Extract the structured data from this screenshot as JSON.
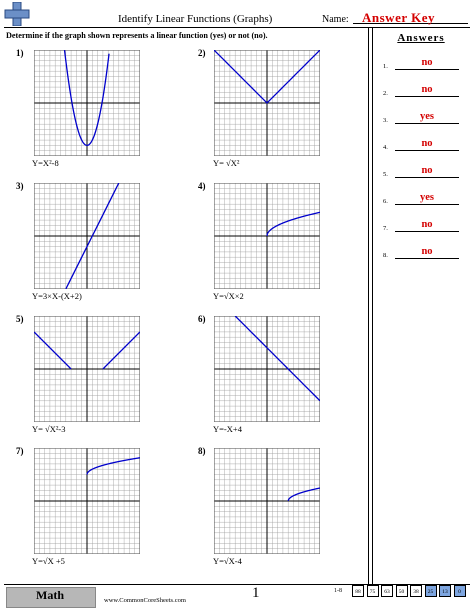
{
  "header": {
    "title": "Identify Linear Functions (Graphs)",
    "name_label": "Name:",
    "answer_key": "Answer Key",
    "instructions": "Determine if the graph shown represents a linear function (yes) or not (no)."
  },
  "problems": [
    {
      "num": "1)",
      "eq": "Y=X²-8"
    },
    {
      "num": "2)",
      "eq": "Y= √X²"
    },
    {
      "num": "3)",
      "eq": "Y=3×X-(X+2)"
    },
    {
      "num": "4)",
      "eq": "Y=√X×2"
    },
    {
      "num": "5)",
      "eq": "Y= √X²-3"
    },
    {
      "num": "6)",
      "eq": "Y=-X+4"
    },
    {
      "num": "7)",
      "eq": "Y=√X +5"
    },
    {
      "num": "8)",
      "eq": "Y=√X-4"
    }
  ],
  "answers": {
    "heading": "Answers",
    "items": [
      {
        "num": "1.",
        "value": "no"
      },
      {
        "num": "2.",
        "value": "no"
      },
      {
        "num": "3.",
        "value": "yes"
      },
      {
        "num": "4.",
        "value": "no"
      },
      {
        "num": "5.",
        "value": "no"
      },
      {
        "num": "6.",
        "value": "yes"
      },
      {
        "num": "7.",
        "value": "no"
      },
      {
        "num": "8.",
        "value": "no"
      }
    ]
  },
  "footer": {
    "subject": "Math",
    "site": "www.CommonCoreSheets.com",
    "page": "1",
    "score_range": "1-8",
    "scores": [
      "88",
      "75",
      "63",
      "50",
      "38",
      "25",
      "13",
      "0"
    ],
    "highlighted_scores": [
      "25",
      "13",
      "0"
    ]
  },
  "colors": {
    "accent": "#d40000",
    "curve": "#0000cc",
    "logo": "#6b8fc7"
  }
}
